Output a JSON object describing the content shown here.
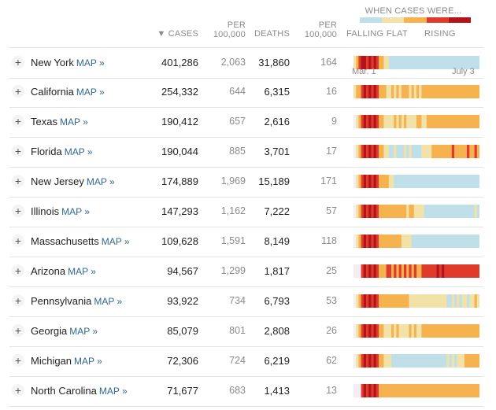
{
  "headers": {
    "cases": "CASES",
    "sort_arrow": "▼",
    "per_100k_1": [
      "PER",
      "100,000"
    ],
    "deaths": "DEATHS",
    "per_100k_2": [
      "PER",
      "100,000"
    ]
  },
  "legend": {
    "title": "WHEN CASES WERE...",
    "falling_flat": "FALLING FLAT",
    "rising": "RISING",
    "colors": [
      "#bfdfe9",
      "#f3e2a7",
      "#f6b24e",
      "#e03a2a",
      "#b3141c"
    ]
  },
  "axis": {
    "start": "Mar. 1",
    "end": "July 3"
  },
  "map_label": "MAP »",
  "palette": {
    "0": "#f2eef4",
    "1": "#bfdfe9",
    "2": "#f3e2a7",
    "3": "#f6b24e",
    "4": "#e03a2a",
    "5": "#b3141c"
  },
  "rows": [
    {
      "state": "New York",
      "cases": "401,286",
      "per_cases": "2,063",
      "deaths": "31,860",
      "per_deaths": "164",
      "trend": "23455454543322111111111111111111111111111111111111"
    },
    {
      "state": "California",
      "cases": "254,332",
      "per_cases": "644",
      "deaths": "6,315",
      "per_deaths": "16",
      "trend": "23345454543332232323332323233333333333333333333333"
    },
    {
      "state": "Texas",
      "cases": "190,412",
      "per_cases": "657",
      "deaths": "2,616",
      "per_deaths": "9",
      "trend": "02345454543322223232322223322333333333333333333333"
    },
    {
      "state": "Florida",
      "cases": "190,044",
      "per_cases": "885",
      "deaths": "3,701",
      "per_deaths": "17",
      "trend": "02345454543322112111212111122223333333343333343343"
    },
    {
      "state": "New Jersey",
      "cases": "174,889",
      "per_cases": "1,969",
      "deaths": "15,189",
      "per_deaths": "171",
      "trend": "02345454543333221111111111111111111111111111111111"
    },
    {
      "state": "Illinois",
      "cases": "147,293",
      "per_cases": "1,162",
      "deaths": "7,222",
      "per_deaths": "57",
      "trend": "02345454543333333333323322221111111111111111111121"
    },
    {
      "state": "Massachusetts",
      "cases": "109,628",
      "per_cases": "1,591",
      "deaths": "8,149",
      "per_deaths": "118",
      "trend": "02345454543333333332222111111111111111111111111111"
    },
    {
      "state": "Arizona",
      "cases": "94,567",
      "per_cases": "1,299",
      "deaths": "1,817",
      "per_deaths": "25",
      "trend": "00045454543334434343434343344444454544444444444444"
    },
    {
      "state": "Pennsylvania",
      "cases": "93,922",
      "per_cases": "734",
      "deaths": "6,793",
      "per_deaths": "53",
      "trend": "02345454543333333333332222222222222221121212212232"
    },
    {
      "state": "Georgia",
      "cases": "85,079",
      "per_cases": "801",
      "deaths": "2,808",
      "per_deaths": "26",
      "trend": "02345454543322232322223232233333333333333333333333"
    },
    {
      "state": "Michigan",
      "cases": "72,306",
      "per_cases": "724",
      "deaths": "6,219",
      "per_deaths": "62",
      "trend": "02345454543322211111111111111111111112121222333333"
    },
    {
      "state": "North Carolina",
      "cases": "71,677",
      "per_cases": "683",
      "deaths": "1,413",
      "per_deaths": "13",
      "trend": "00045454543333333333333333333333333333333333333333"
    }
  ]
}
